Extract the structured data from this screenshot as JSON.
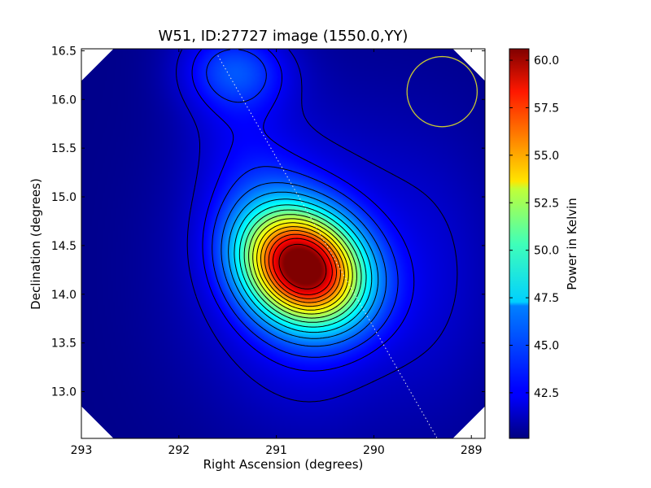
{
  "chart_data": {
    "type": "heatmap",
    "title": "W51, ID:27727 image (1550.0,YY)",
    "xlabel": "Right Ascension (degrees)",
    "ylabel": "Declination (degrees)",
    "xlim": [
      293.0,
      288.86
    ],
    "ylim": [
      12.52,
      16.52
    ],
    "x_ticks": [
      293,
      292,
      291,
      290,
      289
    ],
    "y_ticks": [
      13.0,
      13.5,
      14.0,
      14.5,
      15.0,
      15.5,
      16.0,
      16.5
    ],
    "x_tick_labels": [
      "293",
      "292",
      "291",
      "290",
      "289"
    ],
    "y_tick_labels": [
      "13.0",
      "13.5",
      "14.0",
      "14.5",
      "15.0",
      "15.5",
      "16.0",
      "16.5"
    ],
    "colorbar": {
      "label": "Power in Kelvin",
      "range": [
        40.1,
        60.6
      ],
      "ticks": [
        42.5,
        45.0,
        47.5,
        50.0,
        52.5,
        55.0,
        57.5,
        60.0
      ],
      "tick_labels": [
        "42.5",
        "45.0",
        "47.5",
        "50.0",
        "52.5",
        "55.0",
        "57.5",
        "60.0"
      ],
      "colormap": "jet"
    },
    "peak": {
      "ra": 290.72,
      "dec": 14.28,
      "value": 60.6
    },
    "secondary_peak": {
      "ra": 291.4,
      "dec": 16.3,
      "value": 43.8
    },
    "background_level": 40.3,
    "beam_circle": {
      "ra": 289.3,
      "dec": 16.08,
      "radius_deg": 0.36,
      "color": "#c8c832"
    },
    "scan_line": {
      "start": {
        "ra": 291.6,
        "dec": 16.45
      },
      "end": {
        "ra": 289.35,
        "dec": 12.52
      },
      "color": "#e8e8e8"
    },
    "contour_levels": [
      41.6,
      42.5,
      43.4,
      44.6,
      45.8,
      47.0,
      48.2,
      49.4,
      50.6,
      51.8,
      53.0,
      54.2,
      55.4,
      56.6,
      57.8,
      59.4
    ],
    "corner_cut_deg": 0.33
  }
}
